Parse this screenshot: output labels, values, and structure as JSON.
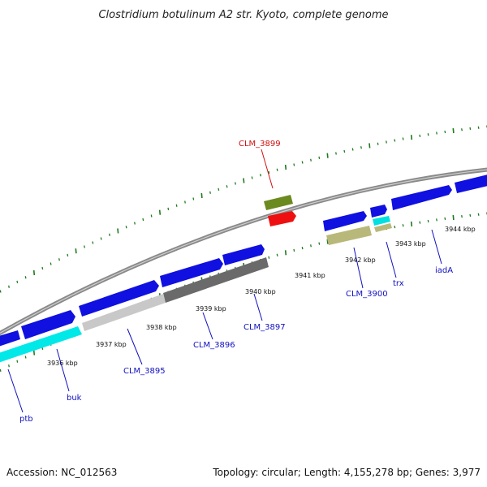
{
  "title": "Clostridium botulinum A2 str. Kyoto, complete genome",
  "footer": {
    "accession": "Accession: NC_012563",
    "summary": "Topology: circular; Length: 4,155,278 bp; Genes: 3,977"
  },
  "colors": {
    "backbone": "#8a8a8a",
    "ticks": "#1e7a1e",
    "cds": "#1010e0",
    "label_default": "#1010c0",
    "label_highlight": "#d01010"
  },
  "kbp_labels": [
    "3936 kbp",
    "3937 kbp",
    "3938 kbp",
    "3939 kbp",
    "3940 kbp",
    "3941 kbp",
    "3942 kbp",
    "3943 kbp",
    "3944 kbp"
  ],
  "gene_labels": [
    {
      "text": "ptb",
      "color": "label_default"
    },
    {
      "text": "buk",
      "color": "label_default"
    },
    {
      "text": "CLM_3895",
      "color": "label_default"
    },
    {
      "text": "CLM_3896",
      "color": "label_default"
    },
    {
      "text": "CLM_3897",
      "color": "label_default"
    },
    {
      "text": "CLM_3899",
      "color": "label_highlight"
    },
    {
      "text": "CLM_3900",
      "color": "label_default"
    },
    {
      "text": "trx",
      "color": "label_default"
    },
    {
      "text": "iadA",
      "color": "label_default"
    }
  ]
}
